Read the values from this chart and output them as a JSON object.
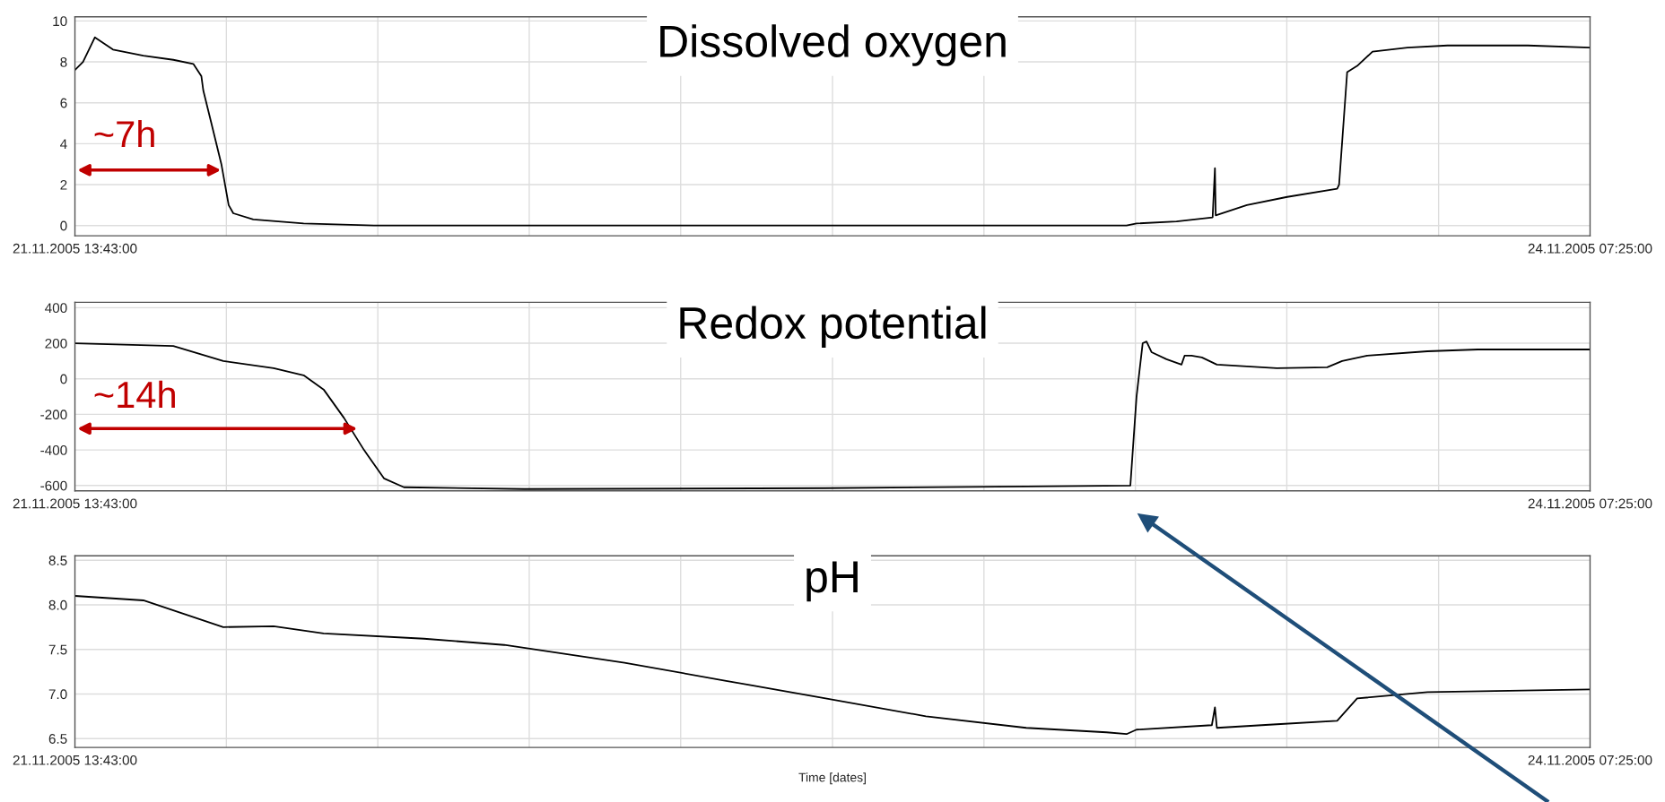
{
  "chart_data": [
    {
      "type": "line",
      "title": "Dissolved oxygen",
      "color": "#000000",
      "x": [
        "2005-11-21T13:43",
        "2005-11-21T14:04",
        "2005-11-21T14:35",
        "2005-11-21T15:22",
        "2005-11-21T16:41",
        "2005-11-21T17:59",
        "2005-11-21T18:51",
        "2005-11-21T19:12",
        "2005-11-21T19:17",
        "2005-11-21T19:38",
        "2005-11-21T20:04",
        "2005-11-21T20:23",
        "2005-11-21T20:35",
        "2005-11-21T21:27",
        "2005-11-21T23:38",
        "2005-11-22T02:41",
        "2005-11-22T17:54",
        "2005-11-23T11:19",
        "2005-11-23T11:45",
        "2005-11-23T13:29",
        "2005-11-23T15:03",
        "2005-11-23T15:09",
        "2005-11-23T15:11",
        "2005-11-23T16:32",
        "2005-11-23T18:17",
        "2005-11-23T20:27",
        "2005-11-23T20:32",
        "2005-11-23T20:53",
        "2005-11-23T21:19",
        "2005-11-23T21:59",
        "2005-11-23T23:30",
        "2005-11-24T01:14",
        "2005-11-24T04:43",
        "2005-11-24T07:25"
      ],
      "values": [
        7.6,
        8.0,
        9.2,
        8.6,
        8.3,
        8.1,
        7.9,
        7.3,
        6.6,
        5.0,
        3.0,
        1.0,
        0.6,
        0.3,
        0.1,
        0.0,
        0.0,
        0.0,
        0.1,
        0.2,
        0.4,
        2.8,
        0.5,
        1.0,
        1.4,
        1.8,
        2.0,
        7.5,
        7.8,
        8.5,
        8.7,
        8.8,
        8.8,
        8.7
      ],
      "xlim": [
        "2005-11-21T13:43",
        "2005-11-24T07:25"
      ],
      "ylim": [
        -0.5,
        10.2
      ],
      "yticks": [
        0,
        2,
        4,
        6,
        8,
        10
      ],
      "xticks": [
        {
          "value": "2005-11-21T13:43",
          "label": "21.11.2005 13:43:00"
        },
        {
          "value": "2005-11-21T20:17",
          "label": null
        },
        {
          "value": "2005-11-22T02:51",
          "label": null
        },
        {
          "value": "2005-11-22T09:25",
          "label": null
        },
        {
          "value": "2005-11-22T15:59",
          "label": null
        },
        {
          "value": "2005-11-22T22:34",
          "label": null
        },
        {
          "value": "2005-11-23T05:08",
          "label": null
        },
        {
          "value": "2005-11-23T11:42",
          "label": null
        },
        {
          "value": "2005-11-23T18:16",
          "label": null
        },
        {
          "value": "2005-11-24T00:51",
          "label": null
        },
        {
          "value": "2005-11-24T07:25",
          "label": "24.11.2005 07:25:00"
        }
      ],
      "grid": true,
      "annotations": [
        "~7h"
      ]
    },
    {
      "type": "line",
      "title": "Redox potential",
      "color": "#000000",
      "x": [
        "2005-11-21T13:43",
        "2005-11-21T17:59",
        "2005-11-21T20:09",
        "2005-11-21T22:20",
        "2005-11-21T23:38",
        "2005-11-22T00:30",
        "2005-11-22T01:23",
        "2005-11-22T02:15",
        "2005-11-22T03:07",
        "2005-11-22T03:59",
        "2005-11-22T09:12",
        "2005-11-22T22:16",
        "2005-11-23T06:58",
        "2005-11-23T11:29",
        "2005-11-23T11:45",
        "2005-11-23T12:01",
        "2005-11-23T12:11",
        "2005-11-23T12:24",
        "2005-11-23T13:03",
        "2005-11-23T13:42",
        "2005-11-23T13:50",
        "2005-11-23T14:08",
        "2005-11-23T14:35",
        "2005-11-23T15:14",
        "2005-11-23T17:50",
        "2005-11-23T20:01",
        "2005-11-23T20:40",
        "2005-11-23T21:45",
        "2005-11-24T00:22",
        "2005-11-24T02:33",
        "2005-11-24T07:25"
      ],
      "values": [
        200,
        185,
        100,
        60,
        20,
        -60,
        -220,
        -400,
        -560,
        -610,
        -620,
        -615,
        -605,
        -600,
        -100,
        200,
        210,
        150,
        110,
        80,
        130,
        130,
        120,
        80,
        60,
        65,
        100,
        130,
        155,
        165,
        165
      ],
      "xlim": [
        "2005-11-21T13:43",
        "2005-11-24T07:25"
      ],
      "ylim": [
        -630,
        430
      ],
      "yticks": [
        -600,
        -400,
        -200,
        0,
        200,
        400
      ],
      "xticks": [
        {
          "value": "2005-11-21T13:43",
          "label": "21.11.2005 13:43:00"
        },
        {
          "value": "2005-11-21T20:17",
          "label": null
        },
        {
          "value": "2005-11-22T02:51",
          "label": null
        },
        {
          "value": "2005-11-22T09:25",
          "label": null
        },
        {
          "value": "2005-11-22T15:59",
          "label": null
        },
        {
          "value": "2005-11-22T22:34",
          "label": null
        },
        {
          "value": "2005-11-23T05:08",
          "label": null
        },
        {
          "value": "2005-11-23T11:42",
          "label": null
        },
        {
          "value": "2005-11-23T18:16",
          "label": null
        },
        {
          "value": "2005-11-24T00:51",
          "label": null
        },
        {
          "value": "2005-11-24T07:25",
          "label": "24.11.2005 07:25:00"
        }
      ],
      "grid": true,
      "annotations": [
        "~14h"
      ]
    },
    {
      "type": "line",
      "title": "pH",
      "color": "#000000",
      "xlabel": "Time [dates]",
      "x": [
        "2005-11-21T13:43",
        "2005-11-21T16:41",
        "2005-11-21T18:25",
        "2005-11-21T20:09",
        "2005-11-21T22:20",
        "2005-11-22T00:30",
        "2005-11-22T04:51",
        "2005-11-22T08:20",
        "2005-11-22T13:33",
        "2005-11-22T17:54",
        "2005-11-22T22:16",
        "2005-11-23T02:37",
        "2005-11-23T06:58",
        "2005-11-23T10:27",
        "2005-11-23T11:19",
        "2005-11-23T11:45",
        "2005-11-23T15:01",
        "2005-11-23T15:09",
        "2005-11-23T15:14",
        "2005-11-23T17:50",
        "2005-11-23T20:27",
        "2005-11-23T21:19",
        "2005-11-24T00:22",
        "2005-11-24T07:25"
      ],
      "values": [
        8.1,
        8.05,
        7.9,
        7.75,
        7.76,
        7.68,
        7.62,
        7.55,
        7.35,
        7.15,
        6.95,
        6.75,
        6.62,
        6.57,
        6.55,
        6.6,
        6.65,
        6.85,
        6.62,
        6.66,
        6.7,
        6.95,
        7.02,
        7.05
      ],
      "xlim": [
        "2005-11-21T13:43",
        "2005-11-24T07:25"
      ],
      "ylim": [
        6.4,
        8.55
      ],
      "yticks": [
        6.5,
        {
          "value": 7,
          "label": "7.0"
        },
        7.5,
        {
          "value": 8,
          "label": "8.0"
        },
        8.5
      ],
      "xticks": [
        {
          "value": "2005-11-21T13:43",
          "label": "21.11.2005 13:43:00"
        },
        {
          "value": "2005-11-21T20:17",
          "label": null
        },
        {
          "value": "2005-11-22T02:51",
          "label": null
        },
        {
          "value": "2005-11-22T09:25",
          "label": null
        },
        {
          "value": "2005-11-22T15:59",
          "label": null
        },
        {
          "value": "2005-11-22T22:34",
          "label": null
        },
        {
          "value": "2005-11-23T05:08",
          "label": null
        },
        {
          "value": "2005-11-23T11:42",
          "label": null
        },
        {
          "value": "2005-11-23T18:16",
          "label": null
        },
        {
          "value": "2005-11-24T00:51",
          "label": null
        },
        {
          "value": "2005-11-24T07:25",
          "label": "24.11.2005 07:25:00"
        }
      ],
      "grid": true
    }
  ]
}
